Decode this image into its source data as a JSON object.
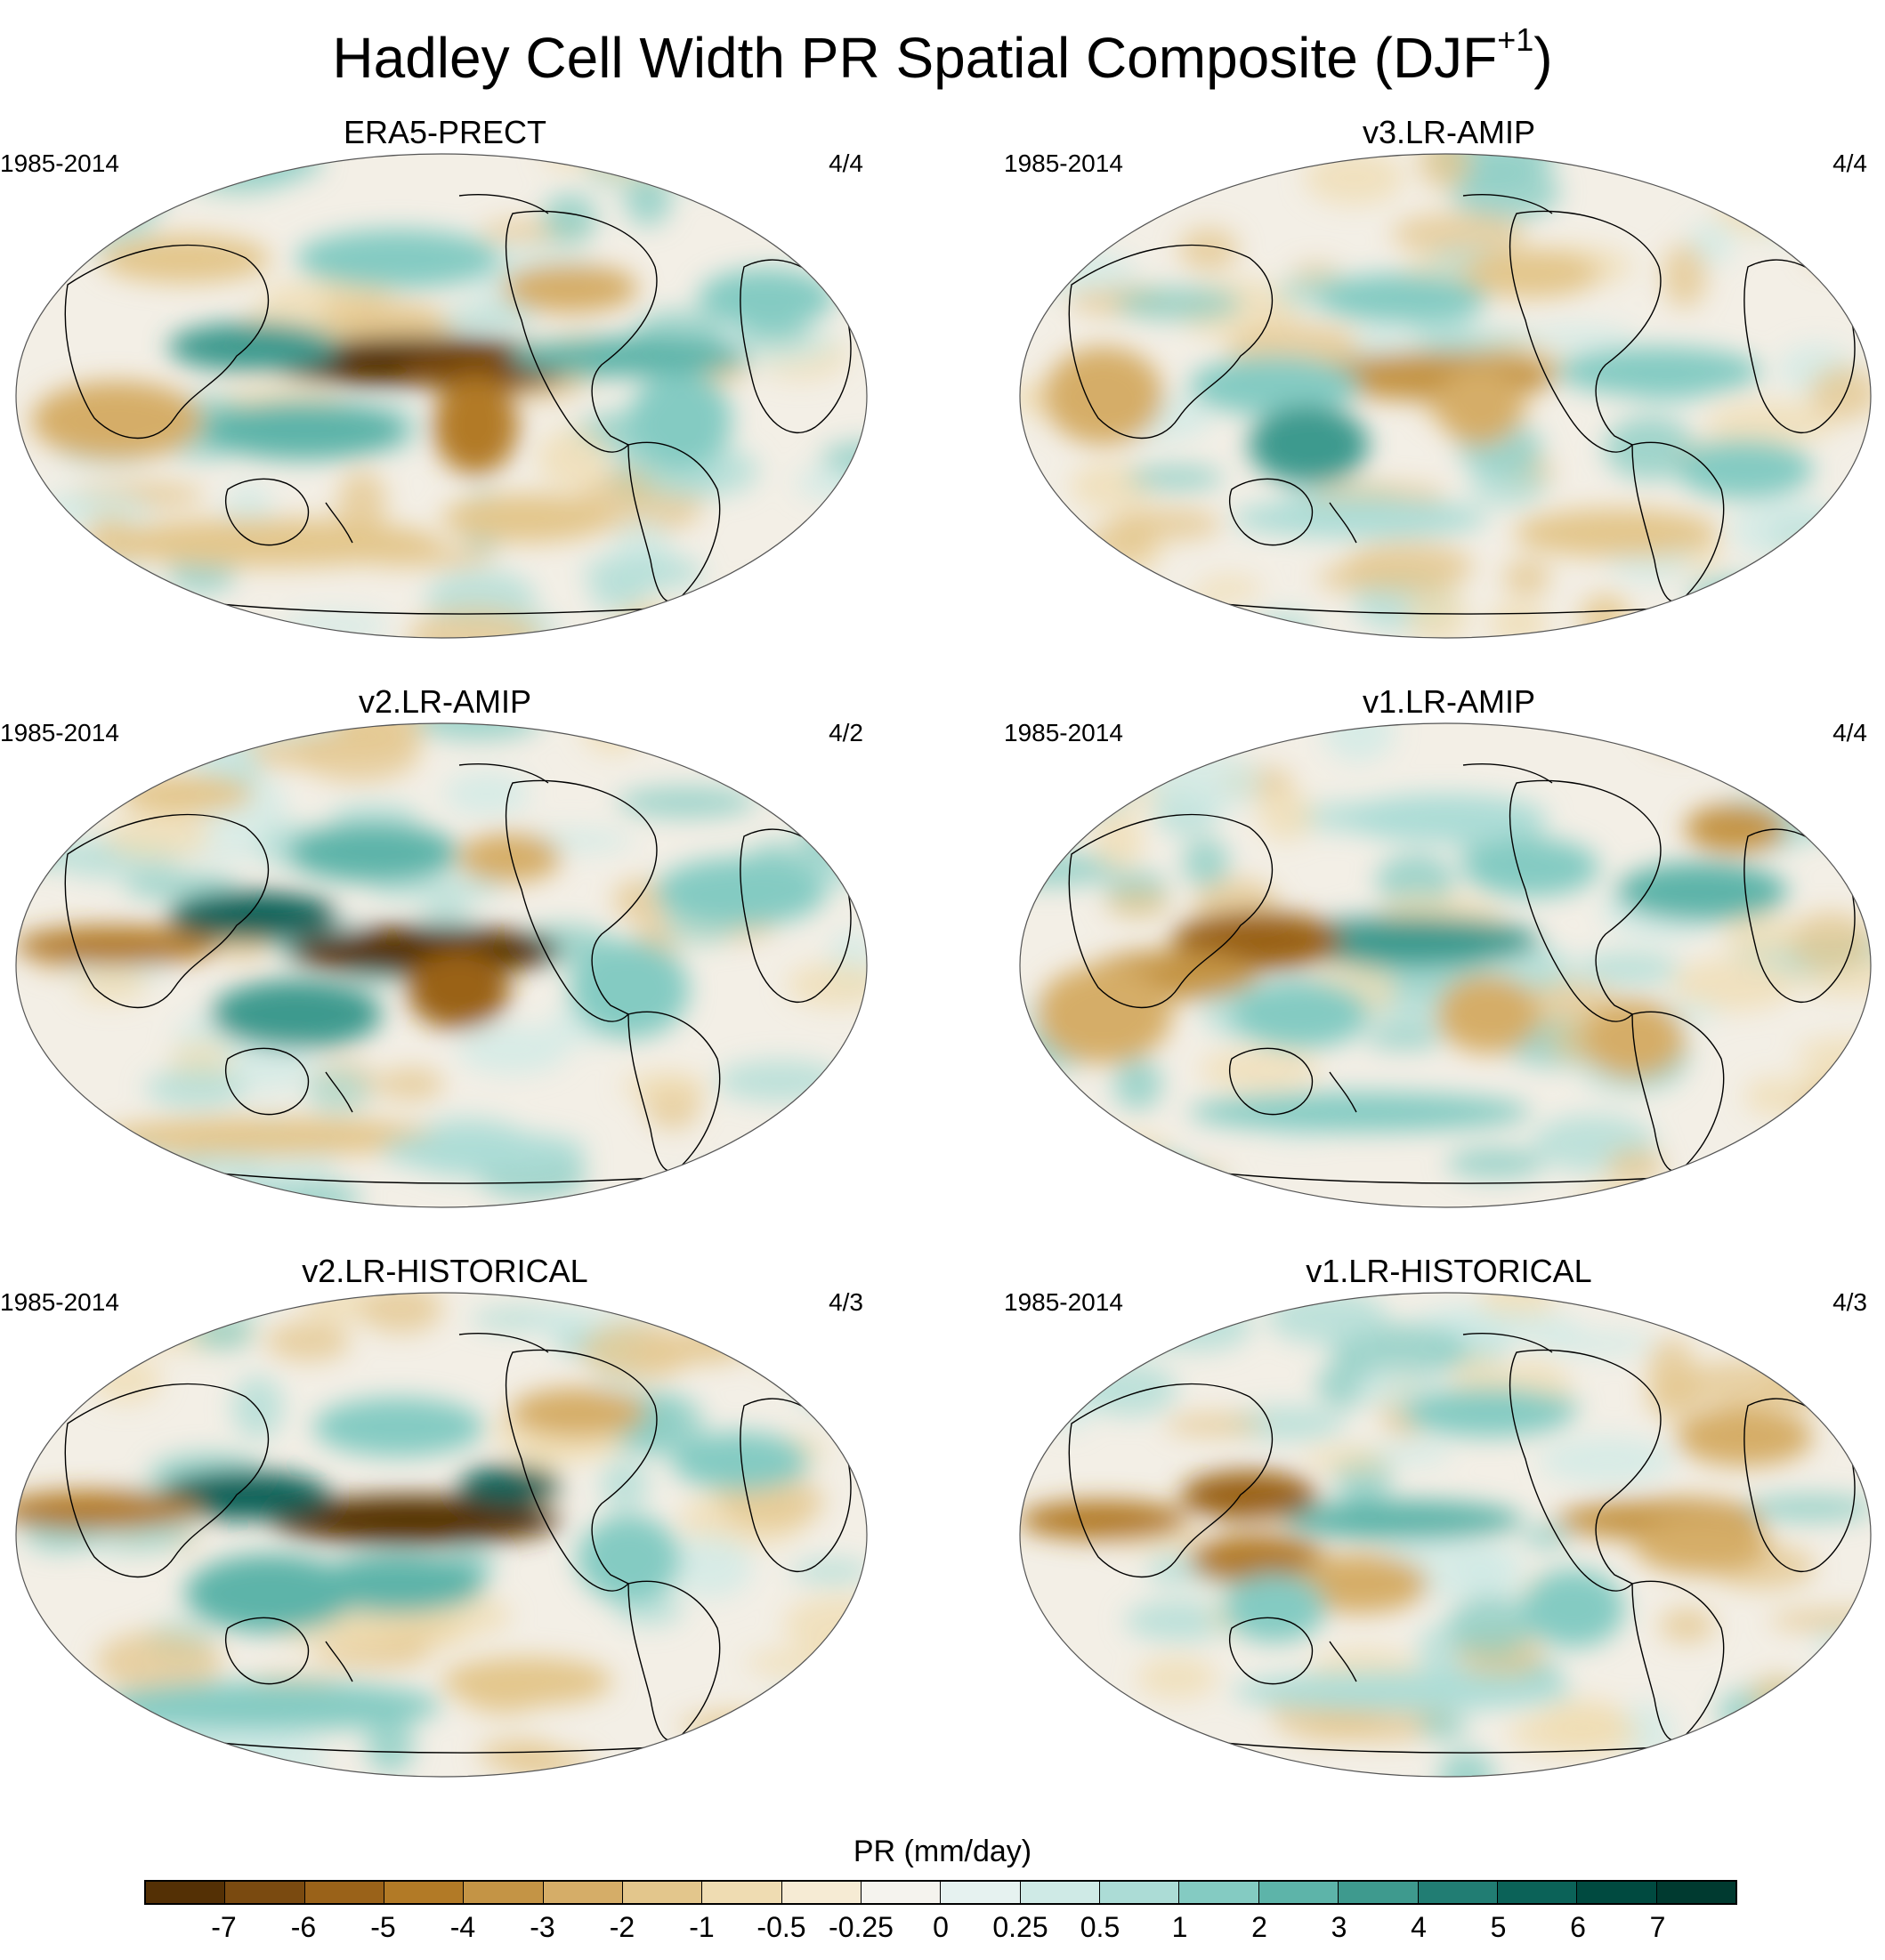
{
  "title": {
    "main": "Hadley Cell Width PR Spatial Composite (DJF",
    "sup": "+1",
    "close": ")"
  },
  "panels": [
    {
      "name": "ERA5-PRECT",
      "years": "1985-2014",
      "count": "4/4",
      "pattern": "era5"
    },
    {
      "name": "v3.LR-AMIP",
      "years": "1985-2014",
      "count": "4/4",
      "pattern": "v3amip"
    },
    {
      "name": "v2.LR-AMIP",
      "years": "1985-2014",
      "count": "4/2",
      "pattern": "v2amip"
    },
    {
      "name": "v1.LR-AMIP",
      "years": "1985-2014",
      "count": "4/4",
      "pattern": "v1amip"
    },
    {
      "name": "v2.LR-HISTORICAL",
      "years": "1985-2014",
      "count": "4/3",
      "pattern": "v2hist"
    },
    {
      "name": "v1.LR-HISTORICAL",
      "years": "1985-2014",
      "count": "4/3",
      "pattern": "v1hist"
    }
  ],
  "colorbar": {
    "label": "PR (mm/day)",
    "ticks": [
      "-7",
      "-6",
      "-5",
      "-4",
      "-3",
      "-2",
      "-1",
      "-0.5",
      "-0.25",
      "0",
      "0.25",
      "0.5",
      "1",
      "2",
      "3",
      "4",
      "5",
      "6",
      "7"
    ],
    "colors": [
      "#543005",
      "#7a4a10",
      "#9a6219",
      "#b27a26",
      "#c49445",
      "#d5ad68",
      "#e3c68c",
      "#efdcb2",
      "#f6ebd4",
      "#f5f3ee",
      "#e6f2f0",
      "#cfeae6",
      "#acdcd6",
      "#84cbc2",
      "#5db4a9",
      "#3e9a8e",
      "#217d73",
      "#0b6258",
      "#004a40",
      "#003a30"
    ]
  }
}
